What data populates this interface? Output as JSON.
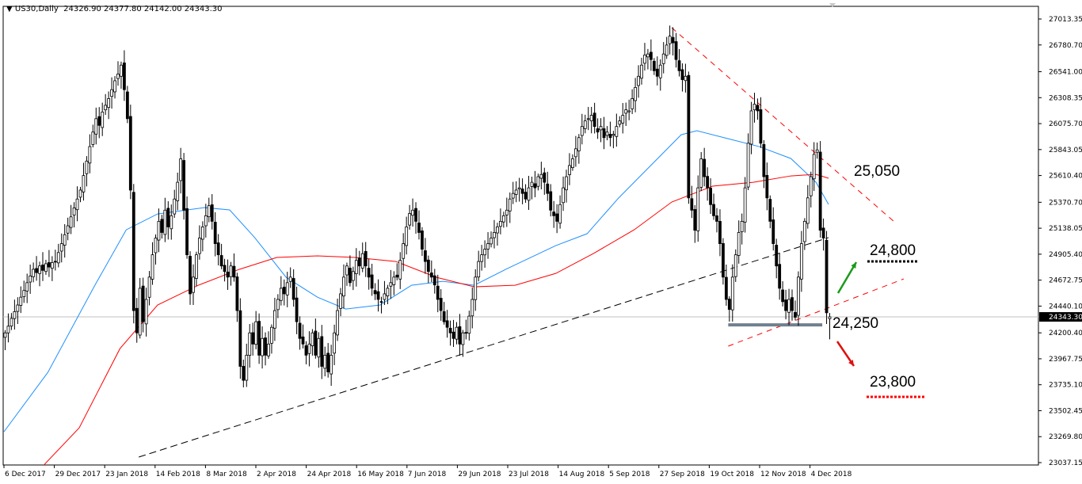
{
  "header": {
    "symbol": "US30,Daily",
    "ohlc": "24326.90 24377.80 24142.00 24343.30"
  },
  "chart_data": {
    "type": "candlestick",
    "symbol": "US30",
    "timeframe": "Daily",
    "last_bar": {
      "open": 24326.9,
      "high": 24377.8,
      "low": 24142.0,
      "close": 24343.3
    },
    "current_price_label": "24343.30",
    "ylim": [
      23037.15,
      27013.35
    ],
    "y_ticks": [
      "27013.35",
      "26780.70",
      "26541.00",
      "26308.35",
      "26075.70",
      "25843.05",
      "25610.40",
      "25370.70",
      "25138.05",
      "24905.40",
      "24672.75",
      "24440.10",
      "24200.40",
      "23967.75",
      "23735.10",
      "23502.45",
      "23269.80",
      "23037.15"
    ],
    "x_ticks": [
      "6 Dec 2017",
      "29 Dec 2017",
      "23 Jan 2018",
      "14 Feb 2018",
      "8 Mar 2018",
      "2 Apr 2018",
      "24 Apr 2018",
      "16 May 2018",
      "7 Jun 2018",
      "29 Jun 2018",
      "23 Jul 2018",
      "14 Aug 2018",
      "5 Sep 2018",
      "27 Sep 2018",
      "19 Oct 2018",
      "12 Nov 2018",
      "4 Dec 2018"
    ],
    "closes": [
      24200,
      24260,
      24330,
      24390,
      24450,
      24520,
      24580,
      24650,
      24710,
      24770,
      24740,
      24800,
      24760,
      24820,
      24790,
      24830,
      24840,
      24920,
      25000,
      25080,
      25160,
      25240,
      25320,
      25400,
      25480,
      25610,
      25740,
      25870,
      26000,
      26120,
      26060,
      26180,
      26240,
      26300,
      26380,
      26460,
      26520,
      26600,
      26380,
      26120,
      25480,
      24400,
      24200,
      24600,
      24300,
      24500,
      24700,
      24900,
      25050,
      25200,
      25100,
      25300,
      25150,
      25250,
      25400,
      25550,
      25760,
      25300,
      24900,
      24550,
      24700,
      24900,
      25050,
      25150,
      25250,
      25340,
      25200,
      25000,
      24900,
      24800,
      24750,
      24700,
      24800,
      24700,
      24400,
      23900,
      23775,
      24000,
      24200,
      24100,
      24300,
      24000,
      24150,
      24000,
      24100,
      24250,
      24400,
      24500,
      24600,
      24550,
      24650,
      24700,
      24500,
      24300,
      24150,
      24100,
      24000,
      24100,
      24200,
      24000,
      24150,
      23900,
      24000,
      23850,
      24000,
      24200,
      24400,
      24550,
      24700,
      24800,
      24650,
      24750,
      24850,
      24800,
      24910,
      24800,
      24700,
      24600,
      24550,
      24500,
      24480,
      24550,
      24600,
      24650,
      24700,
      24700,
      24850,
      25000,
      25150,
      25270,
      25300,
      25200,
      25100,
      24950,
      24840,
      24750,
      24700,
      24630,
      24500,
      24400,
      24300,
      24250,
      24200,
      24150,
      24250,
      24100,
      24200,
      24200,
      24350,
      24500,
      24700,
      24840,
      24900,
      24950,
      25000,
      25050,
      25100,
      25150,
      25200,
      25250,
      25300,
      25400,
      25450,
      25480,
      25500,
      25450,
      25400,
      25500,
      25550,
      25500,
      25600,
      25620,
      25550,
      25450,
      25300,
      25250,
      25200,
      25350,
      25500,
      25600,
      25700,
      25760,
      25850,
      25950,
      26050,
      26100,
      26120,
      26150,
      26050,
      26000,
      26050,
      25950,
      26000,
      25950,
      25980,
      26050,
      26100,
      26150,
      26200,
      26190,
      26300,
      26400,
      26500,
      26600,
      26690,
      26700,
      26650,
      26550,
      26500,
      26600,
      26700,
      26780,
      26860,
      26800,
      26650,
      26550,
      26470,
      26500,
      25410,
      25300,
      25120,
      25500,
      25760,
      25600,
      25500,
      25350,
      25250,
      25200,
      25000,
      24700,
      24500,
      24410,
      24700,
      24900,
      25100,
      25200,
      25500,
      25900,
      26190,
      26250,
      26190,
      25900,
      25600,
      25410,
      25200,
      25000,
      24800,
      24600,
      24480,
      24400,
      24500,
      24400,
      24340,
      24700,
      25000,
      25200,
      25410,
      25600,
      25800,
      25840,
      25120,
      25050,
      24380,
      24343.3
    ],
    "series": [
      {
        "kind": "moving-average",
        "color": "#1e90ff",
        "points": [
          [
            0,
            23314
          ],
          [
            14,
            23846
          ],
          [
            29,
            24627
          ],
          [
            39,
            25124
          ],
          [
            49,
            25266
          ],
          [
            64,
            25323
          ],
          [
            72,
            25302
          ],
          [
            80,
            25053
          ],
          [
            90,
            24698
          ],
          [
            100,
            24520
          ],
          [
            109,
            24414
          ],
          [
            120,
            24450
          ],
          [
            130,
            24627
          ],
          [
            140,
            24662
          ],
          [
            150,
            24627
          ],
          [
            160,
            24769
          ],
          [
            176,
            24982
          ],
          [
            186,
            25089
          ],
          [
            196,
            25408
          ],
          [
            206,
            25692
          ],
          [
            216,
            25976
          ],
          [
            221,
            26012
          ],
          [
            231,
            25940
          ],
          [
            241,
            25869
          ],
          [
            251,
            25763
          ],
          [
            259,
            25550
          ],
          [
            263,
            25352
          ]
        ]
      },
      {
        "kind": "moving-average",
        "color": "#ff0000",
        "points": [
          [
            12,
            22994
          ],
          [
            24,
            23349
          ],
          [
            37,
            24059
          ],
          [
            49,
            24450
          ],
          [
            62,
            24627
          ],
          [
            75,
            24769
          ],
          [
            87,
            24876
          ],
          [
            100,
            24890
          ],
          [
            112,
            24876
          ],
          [
            125,
            24840
          ],
          [
            138,
            24698
          ],
          [
            150,
            24613
          ],
          [
            163,
            24627
          ],
          [
            176,
            24733
          ],
          [
            188,
            24911
          ],
          [
            201,
            25124
          ],
          [
            213,
            25373
          ],
          [
            226,
            25515
          ],
          [
            239,
            25550
          ],
          [
            251,
            25607
          ],
          [
            259,
            25621
          ],
          [
            263,
            25586
          ]
        ]
      }
    ],
    "trendlines": [
      {
        "name": "rising-support",
        "color": "#000000",
        "from": [
          43,
          23087
        ],
        "to": [
          263,
          25054
        ]
      },
      {
        "name": "falling-resistance",
        "color": "#ff0000",
        "from": [
          213,
          26935
        ],
        "to": [
          284,
          25195
        ]
      },
      {
        "name": "rising-channel",
        "color": "#ff0000",
        "from": [
          231,
          24081
        ],
        "to": [
          287,
          24684
        ]
      },
      {
        "name": "support-zone",
        "color": "#708090",
        "from": [
          231,
          24272
        ],
        "to": [
          261,
          24272
        ]
      }
    ],
    "annotations": {
      "resistance": "25,050",
      "upside_target": "24,800",
      "support": "24,250",
      "downside_target": "23,800"
    },
    "colors": {
      "up_arrow": "#1a9a1a",
      "down_arrow": "#e01010",
      "bull_candle": "#ffffff",
      "bear_candle": "#000000"
    }
  }
}
